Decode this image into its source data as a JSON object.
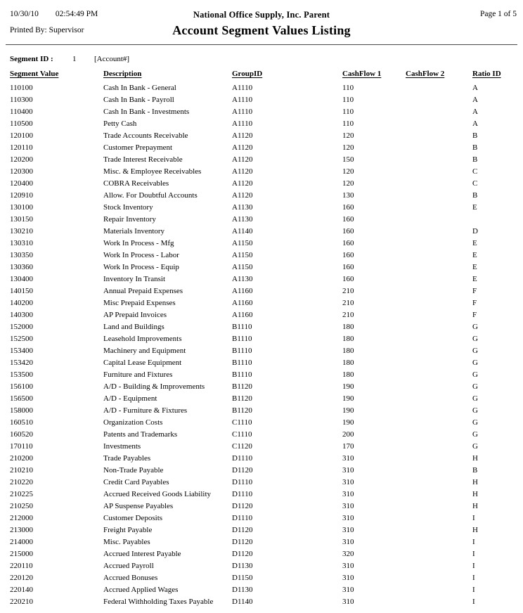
{
  "header": {
    "date": "10/30/10",
    "time": "02:54:49 PM",
    "printed_by": "Printed By: Supervisor",
    "company": "National Office Supply, Inc. Parent",
    "report_title": "Account Segment Values Listing",
    "page_info": "Page 1 of 5"
  },
  "segment": {
    "label": "Segment ID :",
    "value": "1",
    "account_mask": "[Account#]"
  },
  "table": {
    "columns": [
      "Segment Value",
      "Description",
      "GroupID",
      "CashFlow 1",
      "CashFlow 2",
      "Ratio ID"
    ],
    "rows": [
      [
        "110100",
        "Cash In Bank - General",
        "A1110",
        "110",
        "",
        "A"
      ],
      [
        "110300",
        "Cash In Bank - Payroll",
        "A1110",
        "110",
        "",
        "A"
      ],
      [
        "110400",
        "Cash In Bank - Investments",
        "A1110",
        "110",
        "",
        "A"
      ],
      [
        "110500",
        "Petty Cash",
        "A1110",
        "110",
        "",
        "A"
      ],
      [
        "120100",
        "Trade Accounts Receivable",
        "A1120",
        "120",
        "",
        "B"
      ],
      [
        "120110",
        "Customer Prepayment",
        "A1120",
        "120",
        "",
        "B"
      ],
      [
        "120200",
        "Trade Interest Receivable",
        "A1120",
        "150",
        "",
        "B"
      ],
      [
        "120300",
        "Misc. & Employee Receivables",
        "A1120",
        "120",
        "",
        "C"
      ],
      [
        "120400",
        "COBRA Receivables",
        "A1120",
        "120",
        "",
        "C"
      ],
      [
        "120910",
        "Allow. For Doubtful Accounts",
        "A1120",
        "130",
        "",
        "B"
      ],
      [
        "130100",
        "Stock Inventory",
        "A1130",
        "160",
        "",
        "E"
      ],
      [
        "130150",
        "Repair Inventory",
        "A1130",
        "160",
        "",
        ""
      ],
      [
        "130210",
        "Materials Inventory",
        "A1140",
        "160",
        "",
        "D"
      ],
      [
        "130310",
        "Work In Process - Mfg",
        "A1150",
        "160",
        "",
        "E"
      ],
      [
        "130350",
        "Work In Process - Labor",
        "A1150",
        "160",
        "",
        "E"
      ],
      [
        "130360",
        "Work In Process - Equip",
        "A1150",
        "160",
        "",
        "E"
      ],
      [
        "130400",
        "Inventory In Transit",
        "A1130",
        "160",
        "",
        "E"
      ],
      [
        "140150",
        "Annual Prepaid Expenses",
        "A1160",
        "210",
        "",
        "F"
      ],
      [
        "140200",
        "Misc Prepaid Expenses",
        "A1160",
        "210",
        "",
        "F"
      ],
      [
        "140300",
        "AP Prepaid Invoices",
        "A1160",
        "210",
        "",
        "F"
      ],
      [
        "152000",
        "Land and Buildings",
        "B1110",
        "180",
        "",
        "G"
      ],
      [
        "152500",
        "Leasehold Improvements",
        "B1110",
        "180",
        "",
        "G"
      ],
      [
        "153400",
        "Machinery and Equipment",
        "B1110",
        "180",
        "",
        "G"
      ],
      [
        "153420",
        "Capital Lease Equipment",
        "B1110",
        "180",
        "",
        "G"
      ],
      [
        "153500",
        "Furniture and Fixtures",
        "B1110",
        "180",
        "",
        "G"
      ],
      [
        "156100",
        "A/D - Building & Improvements",
        "B1120",
        "190",
        "",
        "G"
      ],
      [
        "156500",
        "A/D - Equipment",
        "B1120",
        "190",
        "",
        "G"
      ],
      [
        "158000",
        "A/D - Furniture & Fixtures",
        "B1120",
        "190",
        "",
        "G"
      ],
      [
        "160510",
        "Organization Costs",
        "C1110",
        "190",
        "",
        "G"
      ],
      [
        "160520",
        "Patents and Trademarks",
        "C1110",
        "200",
        "",
        "G"
      ],
      [
        "170110",
        "Investments",
        "C1120",
        "170",
        "",
        "G"
      ],
      [
        "210200",
        "Trade Payables",
        "D1110",
        "310",
        "",
        "H"
      ],
      [
        "210210",
        "Non-Trade Payable",
        "D1120",
        "310",
        "",
        "B"
      ],
      [
        "210220",
        "Credit Card Payables",
        "D1110",
        "310",
        "",
        "H"
      ],
      [
        "210225",
        "Accrued Received Goods Liability",
        "D1110",
        "310",
        "",
        "H"
      ],
      [
        "210250",
        "AP Suspense Payables",
        "D1120",
        "310",
        "",
        "H"
      ],
      [
        "212000",
        "Customer Deposits",
        "D1110",
        "310",
        "",
        "I"
      ],
      [
        "213000",
        "Freight Payable",
        "D1120",
        "310",
        "",
        "H"
      ],
      [
        "214000",
        "Misc. Payables",
        "D1120",
        "310",
        "",
        "I"
      ],
      [
        "215000",
        "Accrued Interest Payable",
        "D1120",
        "320",
        "",
        "I"
      ],
      [
        "220110",
        "Accrued Payroll",
        "D1130",
        "310",
        "",
        "I"
      ],
      [
        "220120",
        "Accrued Bonuses",
        "D1150",
        "310",
        "",
        "I"
      ],
      [
        "220140",
        "Accrued Applied Wages",
        "D1130",
        "310",
        "",
        "I"
      ],
      [
        "220210",
        "Federal Withholding Taxes Payable",
        "D1140",
        "310",
        "",
        "I"
      ]
    ]
  }
}
